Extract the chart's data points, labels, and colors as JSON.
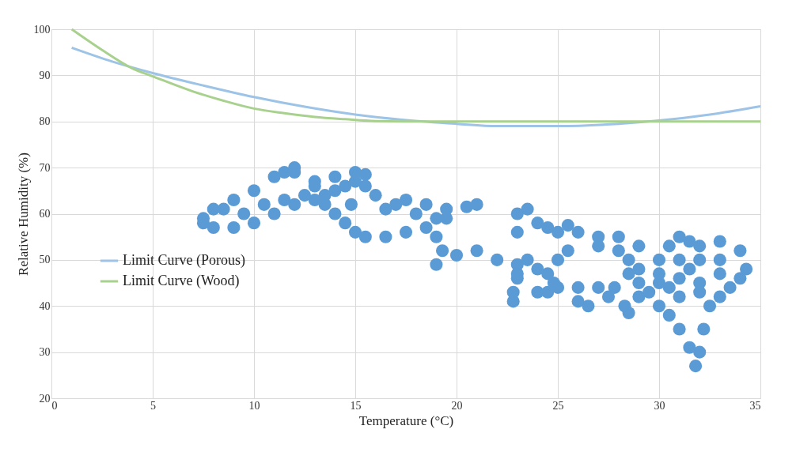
{
  "chart_data": {
    "type": "scatter",
    "xlabel": "Temperature (°C)",
    "ylabel": "Relative Humidity (%)",
    "xlim": [
      0,
      35
    ],
    "xticks": [
      0,
      5,
      10,
      15,
      20,
      25,
      30,
      35
    ],
    "ylim": [
      20,
      100
    ],
    "yticks": [
      20,
      30,
      40,
      50,
      60,
      70,
      80,
      90,
      100
    ],
    "grid": true,
    "legend": "left",
    "series": [
      {
        "name": "Limit Curve (Porous)",
        "type": "line",
        "marker": "none",
        "color": "#9dc3e6",
        "x": [
          1,
          3,
          5,
          7.5,
          10,
          12.5,
          15,
          17.5,
          20,
          22,
          25,
          28,
          30,
          32.5,
          35
        ],
        "values": [
          96,
          93,
          90.5,
          87.8,
          85.3,
          83.2,
          81.5,
          80.3,
          79.5,
          79,
          79,
          79.5,
          80.2,
          81.5,
          83.3
        ]
      },
      {
        "name": "Limit Curve (Wood)",
        "type": "line",
        "marker": "none",
        "color": "#a9d18e",
        "x": [
          1,
          2.5,
          4,
          5,
          7,
          8.5,
          10,
          11.5,
          13,
          14.5,
          16,
          18,
          20,
          25,
          30,
          35
        ],
        "values": [
          100,
          95.5,
          91.5,
          89.8,
          86.5,
          84.5,
          82.8,
          81.8,
          81,
          80.5,
          80.1,
          80,
          80,
          80,
          80,
          80
        ]
      },
      {
        "marker": "circle",
        "color": "#5b9bd5",
        "x": [
          7.5,
          8,
          9,
          10,
          11,
          12,
          13,
          14,
          15,
          15.5,
          15,
          14,
          13,
          12,
          12,
          11.5,
          11,
          10,
          9,
          8,
          7.5,
          8.5,
          9.5,
          10.5,
          11.5,
          12.5,
          13.5,
          14,
          14.5,
          15,
          15.5,
          16.5,
          17.5,
          18.5,
          19,
          19.5,
          20.5,
          21,
          19.5,
          18,
          17,
          16,
          15.5,
          14.5,
          13.5,
          13,
          14.8,
          16.5,
          17.5,
          18.5,
          19,
          19.3,
          19,
          20,
          21,
          22,
          23,
          24,
          24.5,
          23,
          22.8,
          22.8,
          23,
          23.5,
          23,
          23,
          23.5,
          24,
          24.5,
          25,
          25.5,
          26,
          25.5,
          25,
          24.8,
          24.5,
          24,
          25,
          26,
          27,
          27.8,
          27.5,
          26.5,
          26,
          27,
          28,
          29,
          30,
          30.5,
          31,
          31.5,
          32,
          33,
          34,
          34.3,
          34,
          33.5,
          33,
          32.5,
          32.2,
          32,
          31.8,
          31.5,
          31,
          30.5,
          30,
          29.5,
          29,
          28.5,
          28.5,
          29,
          30,
          31,
          32,
          33,
          33,
          32,
          31,
          30,
          31,
          32,
          31.5,
          30.5,
          28.3,
          28.5,
          29,
          28,
          27
        ],
        "values": [
          58,
          57,
          57,
          58,
          60,
          62,
          63,
          65,
          67,
          68.5,
          69,
          68,
          67,
          69,
          70,
          69,
          68,
          65,
          63,
          61,
          59,
          61,
          60,
          62,
          63,
          64,
          62,
          60,
          58,
          56,
          55,
          55,
          56,
          57,
          59,
          61,
          61.5,
          62,
          59,
          60,
          62,
          64,
          66,
          66,
          64,
          66,
          62,
          61,
          63,
          62,
          55,
          52,
          49,
          51,
          52,
          50,
          49,
          48,
          47,
          46,
          43,
          41,
          47,
          50,
          56,
          60,
          61,
          58,
          57,
          56,
          57.5,
          56,
          52,
          50,
          45,
          43,
          43,
          44,
          44,
          44,
          44,
          42,
          40,
          41,
          53,
          55,
          53,
          50,
          53,
          55,
          54,
          53,
          54,
          52,
          48,
          46,
          44,
          42,
          40,
          35,
          30,
          27,
          31,
          35,
          38,
          40,
          43,
          45,
          47,
          50,
          48,
          47,
          46,
          45,
          47,
          50,
          50,
          50,
          45,
          42,
          43,
          48,
          44,
          40,
          38.5,
          42,
          52,
          55
        ]
      }
    ]
  }
}
